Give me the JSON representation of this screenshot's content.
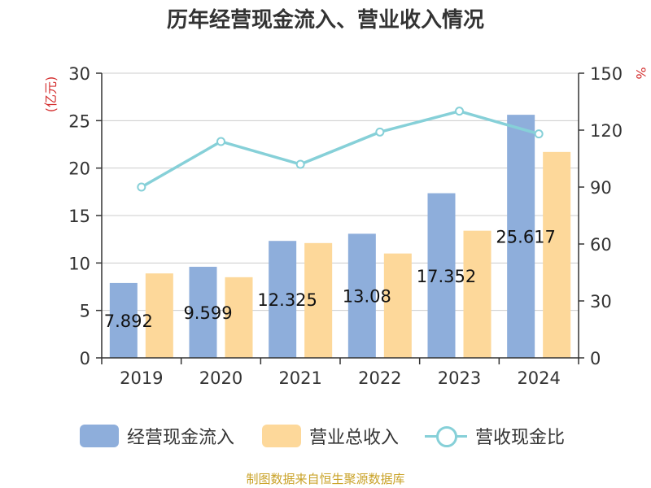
{
  "chart_data": {
    "type": "bar",
    "title": "历年经营现金流入、营业收入情况",
    "categories": [
      "2019",
      "2020",
      "2021",
      "2022",
      "2023",
      "2024"
    ],
    "series": [
      {
        "name": "经营现金流入",
        "kind": "bar",
        "axis": "left",
        "color": "#8eaedb",
        "values": [
          7.892,
          9.599,
          12.325,
          13.08,
          17.352,
          25.617
        ]
      },
      {
        "name": "营业总收入",
        "kind": "bar",
        "axis": "left",
        "color": "#fdd89a",
        "values": [
          8.9,
          8.5,
          12.1,
          11.0,
          13.4,
          21.7
        ]
      },
      {
        "name": "营收现金比",
        "kind": "line",
        "axis": "right",
        "color": "#86d0d8",
        "values": [
          90,
          114,
          102,
          119,
          130,
          118
        ]
      }
    ],
    "data_labels": [
      "7.892",
      "9.599",
      "12.325",
      "13.08",
      "17.352",
      "25.617"
    ],
    "y_left": {
      "label": "(亿元)",
      "ylim": [
        0,
        30
      ],
      "ticks": [
        "0",
        "5",
        "10",
        "15",
        "20",
        "25",
        "30"
      ]
    },
    "y_right": {
      "label": "%",
      "ylim": [
        0,
        150
      ],
      "ticks": [
        "0",
        "30",
        "60",
        "90",
        "120",
        "150"
      ]
    },
    "grid": true,
    "legend_position": "bottom",
    "source": "制图数据来自恒生聚源数据库"
  },
  "colors": {
    "unit_label": "#d43030",
    "axis": "#333333",
    "grid": "#cccccc",
    "source": "#c9a227"
  }
}
